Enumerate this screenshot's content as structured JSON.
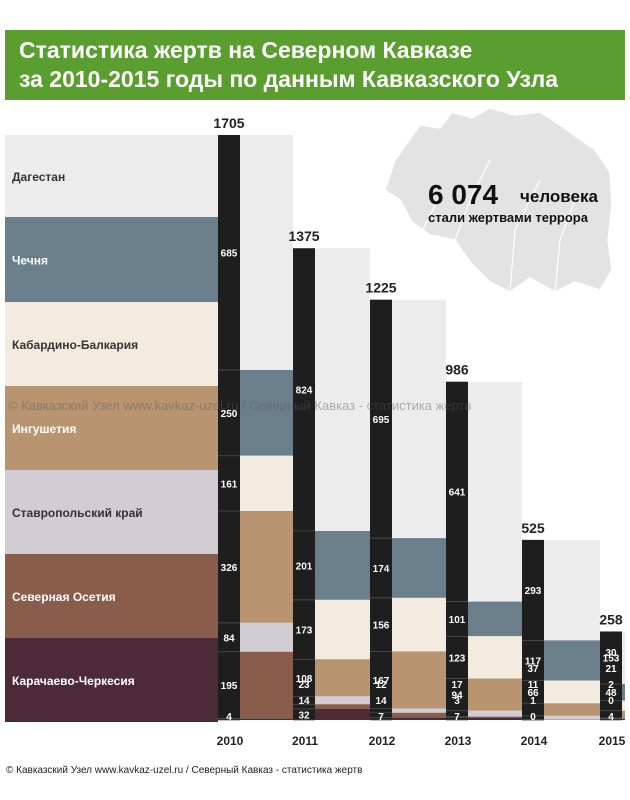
{
  "title": {
    "line1": "Статистика жертв на Северном Кавказе",
    "line2": "за 2010-2015 годы по данным Кавказского Узла"
  },
  "total": {
    "number": "6 074",
    "unit": "человека",
    "caption": "стали жертвами террора"
  },
  "watermark": "© Кавказский Узел    www.kavkaz-uzel.ru   /   Северный Кавказ - статистика жертв",
  "footer": "© Кавказский Узел    www.kavkaz-uzel.ru   /   Северный Кавказ - статистика жертв",
  "colors": {
    "Дагестан": "#ececec",
    "Чечня": "#6b7e8c",
    "Кабардино-Балкария": "#f3ebe0",
    "Ингушетия": "#b89471",
    "Ставропольский край": "#d1cdd2",
    "Северная Осетия": "#8a5c4b",
    "Карачаево-Черкесия": "#4d2a37",
    "bar": "#1e1e1e",
    "title_bg": "#5a9e30"
  },
  "chart_data": {
    "type": "bar",
    "stacked": true,
    "categories": [
      "2010",
      "2011",
      "2012",
      "2013",
      "2014",
      "2015"
    ],
    "totals": [
      1705,
      1375,
      1225,
      986,
      525,
      258
    ],
    "series": [
      {
        "name": "Дагестан",
        "values": [
          685,
          824,
          695,
          641,
          293,
          153
        ]
      },
      {
        "name": "Чечня",
        "values": [
          250,
          201,
          174,
          101,
          117,
          48
        ]
      },
      {
        "name": "Кабардино-Балкария",
        "values": [
          161,
          173,
          156,
          123,
          66,
          30
        ]
      },
      {
        "name": "Ингушетия",
        "values": [
          326,
          108,
          167,
          94,
          37,
          21
        ]
      },
      {
        "name": "Ставропольский край",
        "values": [
          84,
          23,
          12,
          17,
          11,
          2
        ]
      },
      {
        "name": "Северная Осетия",
        "values": [
          195,
          14,
          14,
          3,
          1,
          0
        ]
      },
      {
        "name": "Карачаево-Черкесия",
        "values": [
          4,
          32,
          7,
          7,
          0,
          4
        ]
      }
    ]
  }
}
